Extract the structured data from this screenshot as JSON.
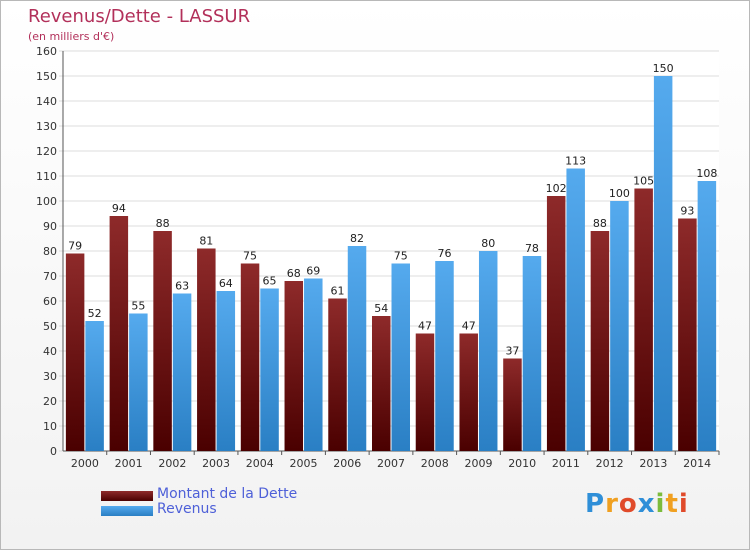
{
  "title": "Revenus/Dette - LASSUR",
  "subtitle": "(en milliers d'€)",
  "colors": {
    "dette": "#6e1414",
    "revenus": "#3f97de",
    "title": "#b2305a",
    "legend_text": "#4e60d8"
  },
  "chart_data": {
    "type": "bar",
    "categories": [
      "2000",
      "2001",
      "2002",
      "2003",
      "2004",
      "2005",
      "2006",
      "2007",
      "2008",
      "2009",
      "2010",
      "2011",
      "2012",
      "2013",
      "2014"
    ],
    "series": [
      {
        "name": "Montant de la Dette",
        "values": [
          79,
          94,
          88,
          81,
          75,
          68,
          61,
          54,
          47,
          47,
          37,
          102,
          88,
          105,
          93
        ]
      },
      {
        "name": "Revenus",
        "values": [
          52,
          55,
          63,
          64,
          65,
          69,
          82,
          75,
          76,
          80,
          78,
          113,
          100,
          150,
          108
        ]
      }
    ],
    "ylim": [
      0,
      160
    ],
    "yticks": [
      0,
      10,
      20,
      30,
      40,
      50,
      60,
      70,
      80,
      90,
      100,
      110,
      120,
      130,
      140,
      150,
      160
    ],
    "grid": true,
    "legend_position": "bottom-left"
  },
  "logo": {
    "text": "Proxiti",
    "letters": [
      "P",
      "r",
      "o",
      "x",
      "i",
      "t",
      "i"
    ],
    "colors": [
      "#2f8fd8",
      "#f0a020",
      "#e04a2a",
      "#2f8fd8",
      "#7cbc3c",
      "#f0a020",
      "#e04a2a"
    ]
  }
}
